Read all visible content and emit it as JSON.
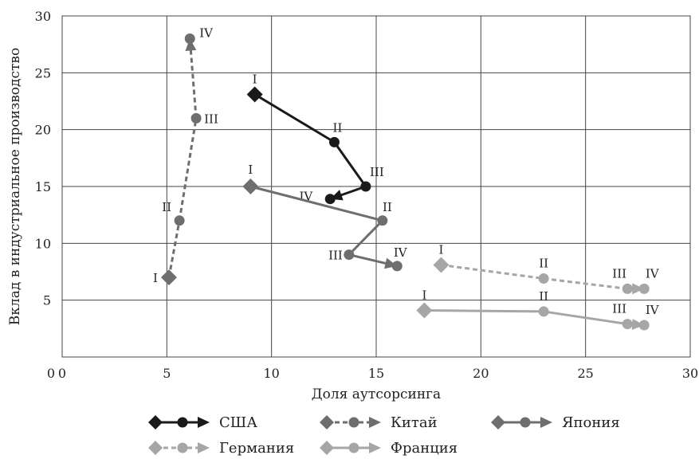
{
  "chart_data": {
    "type": "line",
    "title": "",
    "xlabel": "Доля аутсорсинга",
    "ylabel": "Вклад в индустриальное производство",
    "xlim": [
      0,
      30
    ],
    "ylim": [
      0,
      30
    ],
    "x_ticks": [
      0,
      5,
      10,
      15,
      20,
      25,
      30
    ],
    "y_ticks": [
      5,
      10,
      15,
      20,
      25,
      30
    ],
    "grid": true,
    "legend_position": "bottom",
    "series": [
      {
        "name": "США",
        "color": "#1a1a1a",
        "dashed": false,
        "points": [
          {
            "label": "I",
            "x": 9.2,
            "y": 23.1
          },
          {
            "label": "II",
            "x": 13.0,
            "y": 18.9
          },
          {
            "label": "III",
            "x": 14.5,
            "y": 15.0
          },
          {
            "label": "IV",
            "x": 12.8,
            "y": 13.9
          }
        ]
      },
      {
        "name": "Китай",
        "color": "#6e6e6e",
        "dashed": true,
        "points": [
          {
            "label": "I",
            "x": 5.1,
            "y": 7.0
          },
          {
            "label": "II",
            "x": 5.6,
            "y": 12.0
          },
          {
            "label": "III",
            "x": 6.4,
            "y": 21.0
          },
          {
            "label": "IV",
            "x": 6.1,
            "y": 28.0
          }
        ]
      },
      {
        "name": "Япония",
        "color": "#6e6e6e",
        "dashed": false,
        "points": [
          {
            "label": "I",
            "x": 9.0,
            "y": 15.0
          },
          {
            "label": "II",
            "x": 15.3,
            "y": 12.0
          },
          {
            "label": "III",
            "x": 13.7,
            "y": 9.0
          },
          {
            "label": "IV",
            "x": 16.0,
            "y": 8.0
          }
        ]
      },
      {
        "name": "Германия",
        "color": "#a6a6a6",
        "dashed": true,
        "points": [
          {
            "label": "I",
            "x": 18.1,
            "y": 8.1
          },
          {
            "label": "II",
            "x": 23.0,
            "y": 6.9
          },
          {
            "label": "III",
            "x": 27.0,
            "y": 6.0
          },
          {
            "label": "IV",
            "x": 27.8,
            "y": 6.0
          }
        ]
      },
      {
        "name": "Франция",
        "color": "#a6a6a6",
        "dashed": false,
        "points": [
          {
            "label": "I",
            "x": 17.3,
            "y": 4.1
          },
          {
            "label": "II",
            "x": 23.0,
            "y": 4.0
          },
          {
            "label": "III",
            "x": 27.0,
            "y": 2.9
          },
          {
            "label": "IV",
            "x": 27.8,
            "y": 2.8
          }
        ]
      }
    ]
  }
}
